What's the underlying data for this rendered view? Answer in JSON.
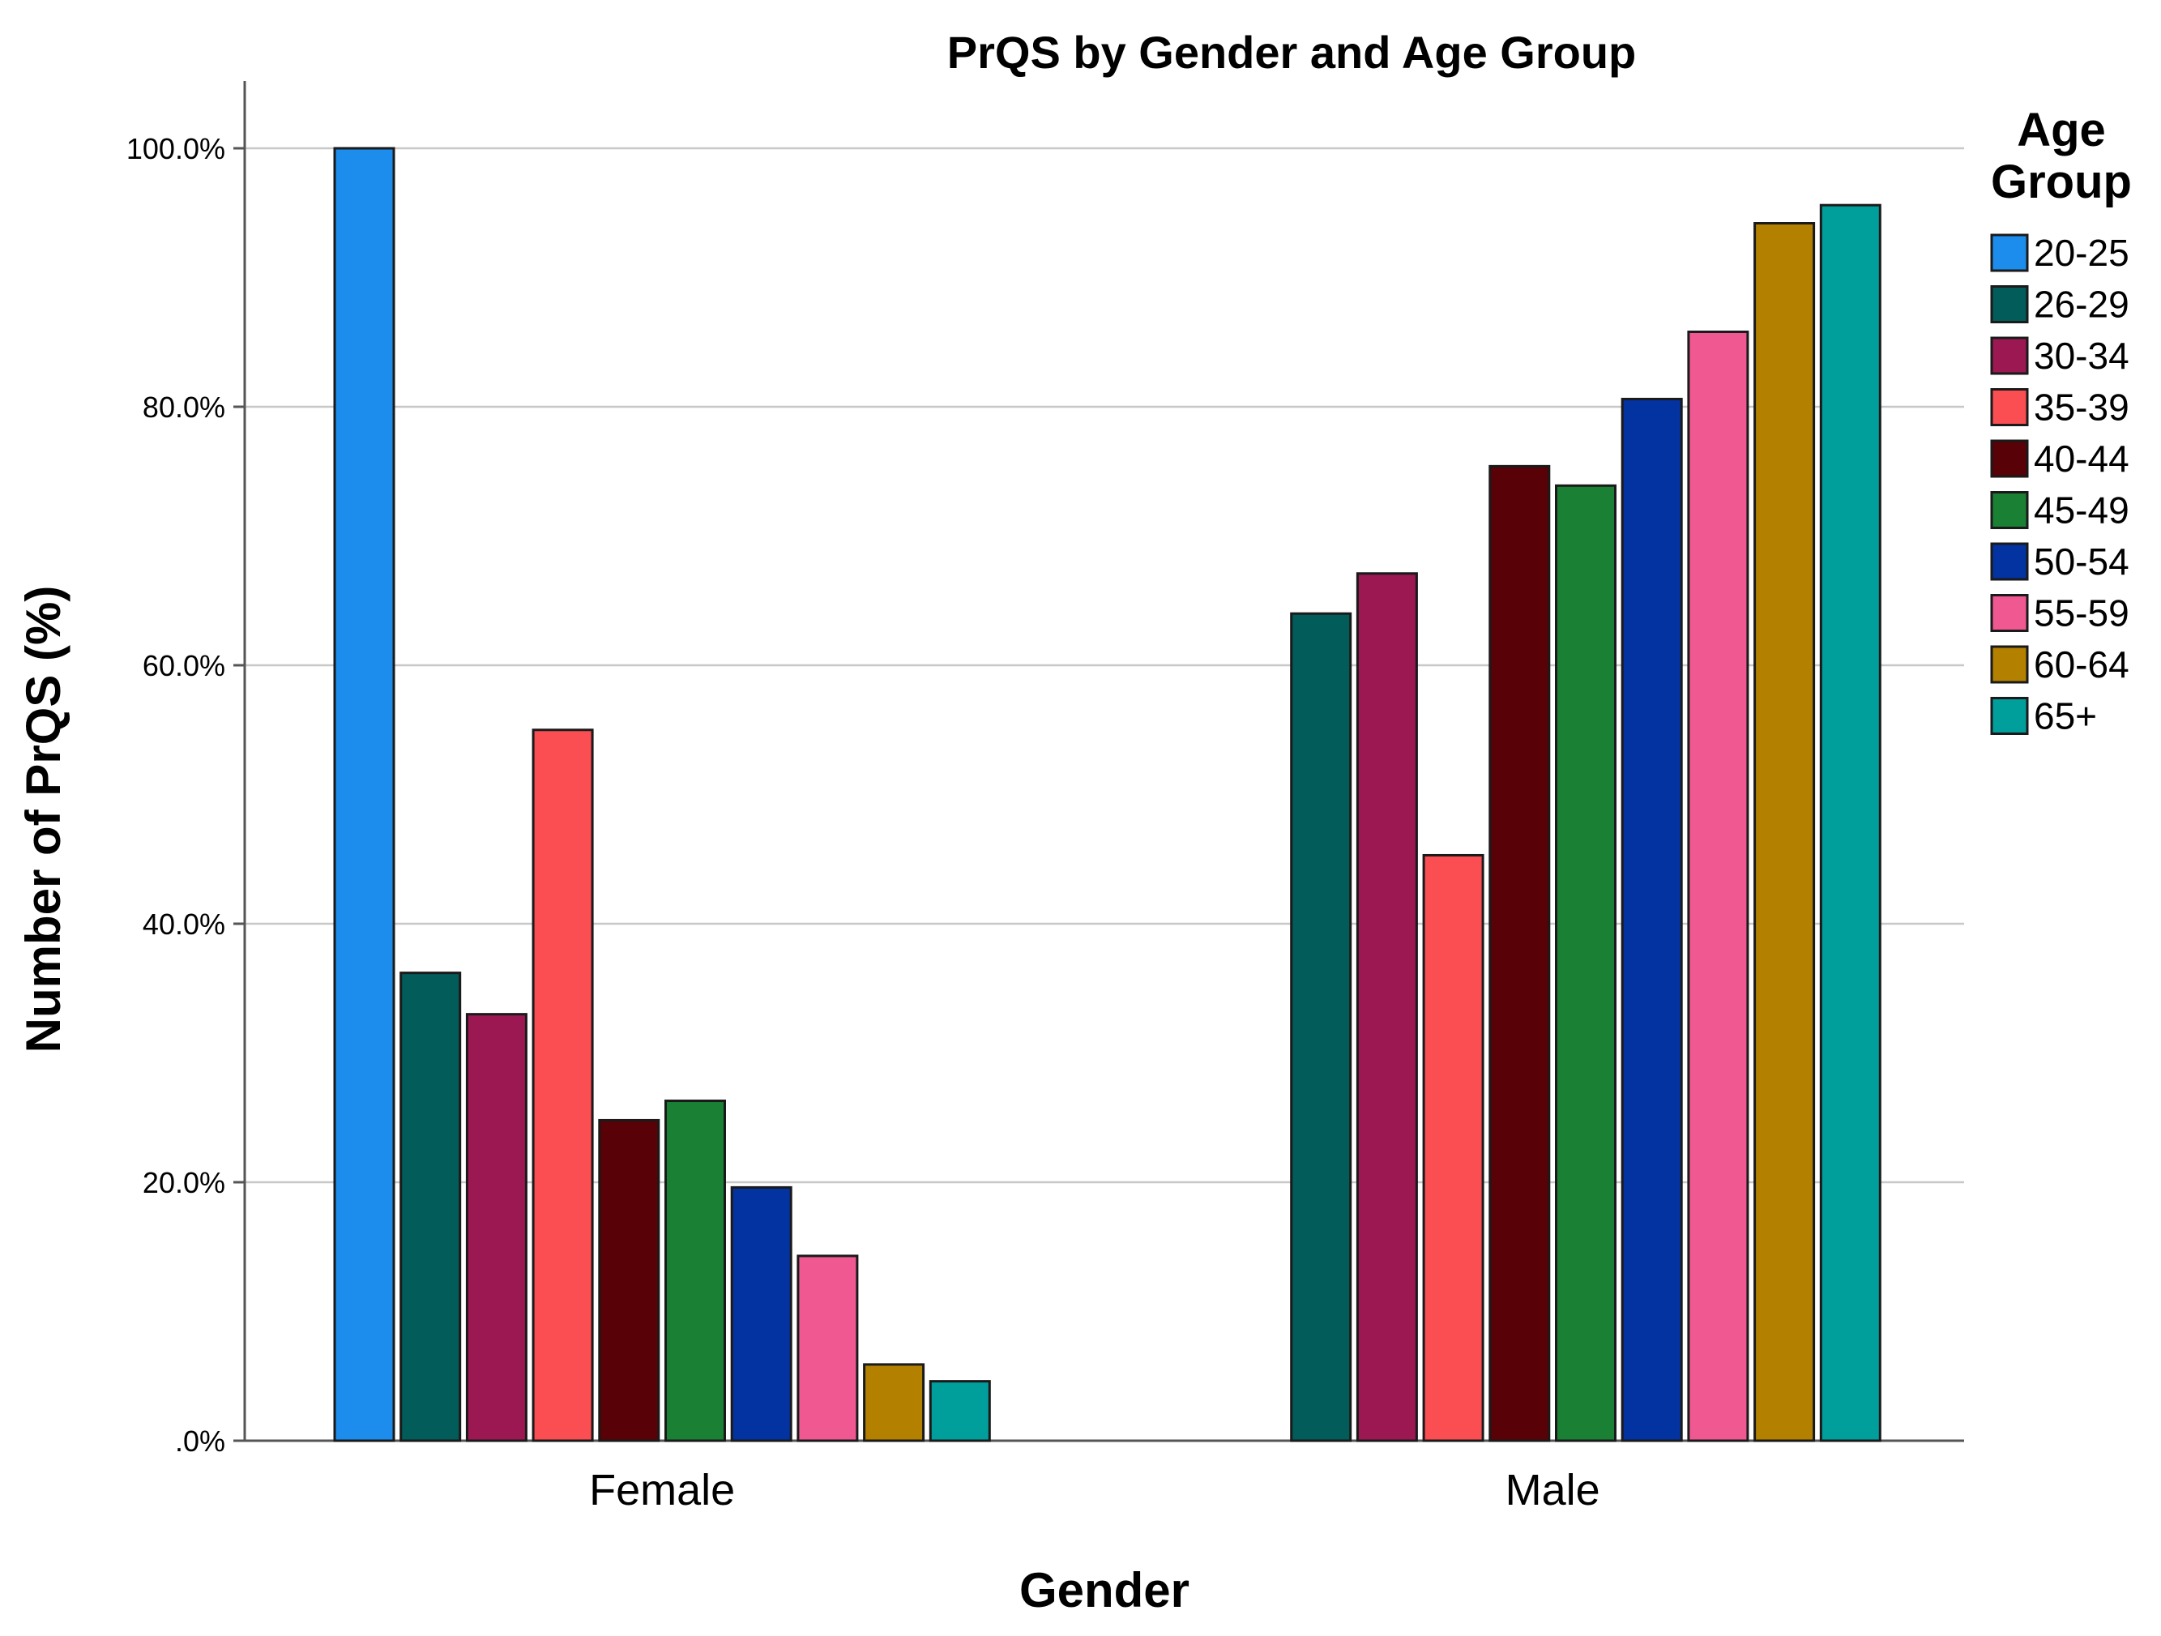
{
  "chart_data": {
    "type": "bar",
    "title": "PrQS by Gender and Age Group",
    "xlabel": "Gender",
    "ylabel": "Number of PrQS (%)",
    "ylim": [
      0,
      100
    ],
    "yticks": [
      0,
      20,
      40,
      60,
      80,
      100
    ],
    "ytick_labels": [
      ".0%",
      "20.0%",
      "40.0%",
      "60.0%",
      "80.0%",
      "100.0%"
    ],
    "grid": true,
    "legend_position": "right",
    "legend_title": [
      "Age",
      "Group"
    ],
    "categories": [
      "Female",
      "Male"
    ],
    "series": [
      {
        "name": "20-25",
        "color": "#1c8ded",
        "values": [
          100.0,
          0.0
        ]
      },
      {
        "name": "26-29",
        "color": "#015c5a",
        "values": [
          36.2,
          64.0
        ]
      },
      {
        "name": "30-34",
        "color": "#9b1853",
        "values": [
          33.0,
          67.1
        ]
      },
      {
        "name": "35-39",
        "color": "#fb4e52",
        "values": [
          55.0,
          45.3
        ]
      },
      {
        "name": "40-44",
        "color": "#580106",
        "values": [
          24.8,
          75.4
        ]
      },
      {
        "name": "45-49",
        "color": "#198034",
        "values": [
          26.3,
          73.9
        ]
      },
      {
        "name": "50-54",
        "color": "#0332a1",
        "values": [
          19.6,
          80.6
        ]
      },
      {
        "name": "55-59",
        "color": "#f05891",
        "values": [
          14.3,
          85.8
        ]
      },
      {
        "name": "60-64",
        "color": "#b38000",
        "values": [
          5.9,
          94.2
        ]
      },
      {
        "name": "65+",
        "color": "#019f9c",
        "values": [
          4.6,
          95.6
        ]
      }
    ]
  }
}
